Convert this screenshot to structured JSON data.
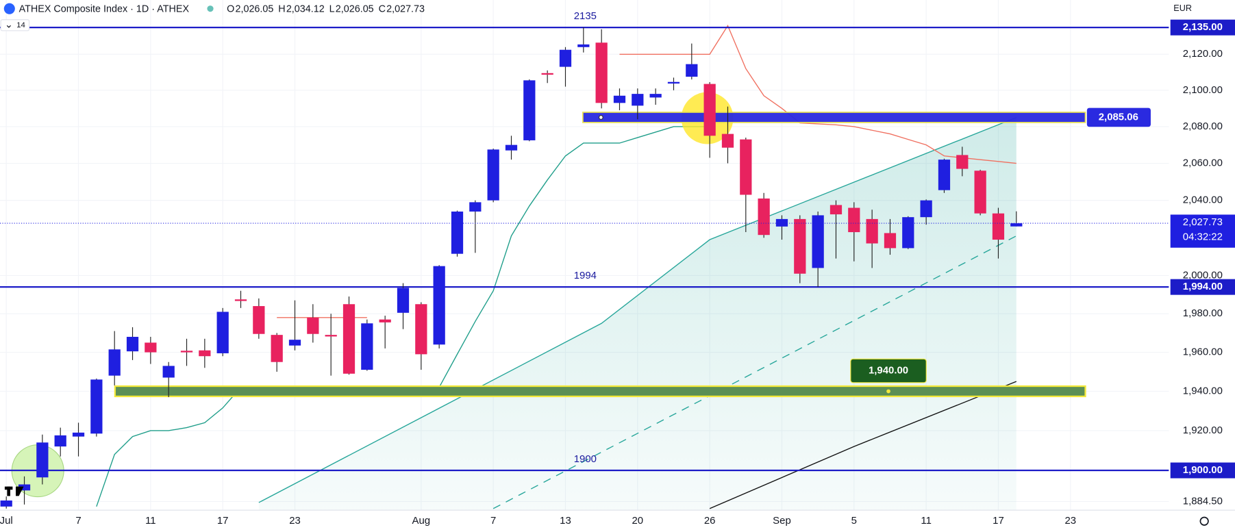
{
  "header": {
    "symbol": "ATHEX Composite Index · 1D · ATHEX",
    "ohlc": [
      {
        "key": "O",
        "value": "2,026.05"
      },
      {
        "key": "H",
        "value": "2,034.12"
      },
      {
        "key": "L",
        "value": "2,026.05"
      },
      {
        "key": "C",
        "value": "2,027.73"
      }
    ],
    "indicator": "14",
    "currency": "EUR",
    "countdown": "04:32:22"
  },
  "chart_data": {
    "type": "candlestick",
    "categories": [
      "Jul",
      null,
      null,
      null,
      "7",
      null,
      null,
      null,
      "11",
      null,
      null,
      null,
      "17",
      null,
      null,
      null,
      "23",
      null,
      null,
      null,
      null,
      null,
      null,
      "Aug",
      null,
      null,
      null,
      "7",
      null,
      null,
      null,
      "13",
      null,
      null,
      null,
      "20",
      null,
      null,
      null,
      "26",
      null,
      null,
      null,
      "Sep",
      null,
      null,
      null,
      "5",
      null,
      null,
      null,
      "11",
      null,
      null,
      null,
      "17",
      null,
      null,
      null,
      "23"
    ],
    "open": [
      1882,
      1890,
      1896.5,
      1912,
      1917,
      1918.5,
      1948,
      1960.5,
      1965,
      1947,
      1960.8,
      1961,
      1959.5,
      1987.5,
      1984,
      1969,
      1963.5,
      1978,
      1969,
      1985,
      1951,
      1977,
      1980.5,
      1985,
      1964,
      2011.5,
      2034,
      2040,
      2067,
      2072.5,
      2109.5,
      2113,
      2124,
      2126.5,
      2093,
      2091.5,
      2096,
      2104.5,
      2107.5,
      2103.5,
      2076,
      2073,
      2041,
      2026,
      2030,
      2004,
      2037.5,
      2036,
      2030,
      2022.5,
      2014.5,
      2031,
      2045.5,
      2064.5,
      2056,
      2033,
      2026.05,
      null,
      null,
      null
    ],
    "high": [
      1887,
      1897,
      1918,
      1921.5,
      1924,
      1946.5,
      1971,
      1973,
      1968,
      1955,
      1967,
      1967,
      1983,
      1992,
      1988,
      1970,
      1987,
      1985,
      1980,
      1989,
      1977,
      1979,
      1996,
      1986,
      2005.5,
      2034.5,
      2040,
      2068,
      2075,
      2106,
      2111,
      2124,
      2135,
      2134,
      2101,
      2101,
      2101,
      2107,
      2126,
      2104.5,
      2091,
      2074,
      2044,
      2032,
      2032,
      2034,
      2040,
      2039,
      2035,
      2030,
      2031.5,
      2040.5,
      2062.5,
      2069,
      2056.5,
      2036,
      2034.12,
      null,
      null,
      null
    ],
    "low": [
      1881,
      1883,
      1893,
      1907,
      1907,
      1917,
      1943,
      1956,
      1954,
      1937,
      1953,
      1952,
      1958,
      1983,
      1967,
      1950,
      1961,
      1965,
      1948,
      1948.5,
      1950.5,
      1962,
      1972,
      1951,
      1962,
      2010,
      2012,
      2039,
      2062,
      2072,
      2104,
      2102,
      2121,
      2090,
      2089,
      2084,
      2092,
      2100,
      2106,
      2063,
      2060,
      2023,
      2020,
      2019,
      1996,
      1994,
      2009,
      2007.5,
      2004,
      2011,
      2014,
      2027,
      2044,
      2053,
      2032,
      2009,
      2026.05,
      null,
      null,
      null
    ],
    "close": [
      1885,
      1893,
      1914,
      1917.6,
      1919,
      1946,
      1961.5,
      1968,
      1960,
      1953,
      1960.2,
      1958,
      1981,
      1987,
      1969.5,
      1955,
      1966.5,
      1969.5,
      1968.5,
      1949,
      1975,
      1975.5,
      1993.5,
      1959,
      2005,
      2034,
      2039,
      2067.5,
      2070,
      2105.5,
      2109,
      2122.5,
      2125.5,
      2093,
      2097,
      2098,
      2098,
      2104.6,
      2114.5,
      2075,
      2068.5,
      2043,
      2021.5,
      2030,
      2001,
      2032,
      2032.5,
      2023,
      2017,
      2014.5,
      2031,
      2040,
      2062,
      2057,
      2033,
      2019,
      2027.73,
      null,
      null,
      null
    ],
    "up_color": "#1f1fe0",
    "down_color": "#e8225f",
    "log_scale": true,
    "grid": true,
    "ylim": [
      1880.2,
      2150.5
    ],
    "yticks": [
      {
        "value": 2120,
        "label": "2,120.00"
      },
      {
        "value": 2100,
        "label": "2,100.00"
      },
      {
        "value": 2080,
        "label": "2,080.00"
      },
      {
        "value": 2060,
        "label": "2,060.00"
      },
      {
        "value": 2040,
        "label": "2,040.00"
      },
      {
        "value": 2000,
        "label": "2,000.00"
      },
      {
        "value": 1980,
        "label": "1,980.00"
      },
      {
        "value": 1960,
        "label": "1,960.00"
      },
      {
        "value": 1940,
        "label": "1,940.00"
      },
      {
        "value": 1920,
        "label": "1,920.00"
      },
      {
        "value": 1884.5,
        "label": "1,884.50"
      }
    ],
    "series": [
      {
        "color": "#1f9e8a",
        "values": [
          null,
          null,
          null,
          null,
          null,
          1882,
          1908,
          1917,
          1920,
          1920,
          1921.5,
          1924,
          1931.5,
          1942,
          1942,
          1942,
          1942,
          1942,
          1942,
          1942,
          1942,
          1942,
          1942,
          1942,
          1942,
          1959,
          1976,
          1992,
          2021,
          2037,
          2051,
          2064,
          2071,
          2071,
          2071,
          2074,
          2077,
          2080,
          2080,
          2080,
          null,
          null,
          null,
          null,
          null,
          null,
          null,
          null,
          null,
          null,
          null,
          null,
          null,
          null,
          null,
          null,
          null,
          null,
          null,
          null
        ]
      },
      {
        "color": "#f07060",
        "values": [
          null,
          null,
          null,
          null,
          null,
          null,
          null,
          null,
          null,
          null,
          null,
          null,
          null,
          null,
          null,
          1978,
          1978,
          1978,
          1978,
          1978,
          1978,
          null,
          null,
          null,
          null,
          null,
          null,
          null,
          null,
          null,
          null,
          null,
          null,
          null,
          2120,
          2120,
          2120,
          2120,
          2120,
          2120,
          2136,
          2112,
          2097,
          2090,
          2082,
          2081.5,
          2081,
          2080,
          2078,
          2076,
          2073,
          2070,
          2064,
          2063,
          2062,
          2061,
          2060,
          null,
          null,
          null
        ]
      }
    ],
    "trend_lines": [
      {
        "color": "#26a69a",
        "fill": true,
        "points": [
          [
            14,
            1884
          ],
          [
            33,
            1975
          ],
          [
            39,
            2019
          ],
          [
            56,
            2085
          ]
        ]
      },
      {
        "color": "#26a69a",
        "dashed": true,
        "points": [
          [
            27,
            1881
          ],
          [
            56,
            2021
          ]
        ]
      },
      {
        "color": "#111111",
        "points": [
          [
            39,
            1881
          ],
          [
            47,
            1912
          ],
          [
            56,
            1945
          ]
        ]
      }
    ],
    "levels": [
      {
        "value": 2135,
        "label": "2135",
        "axis_label": "2,135.00",
        "color": "#1c1cc8"
      },
      {
        "value": 1994,
        "label": "1994",
        "axis_label": "1,994.00",
        "color": "#1c1cc8"
      },
      {
        "value": 1900,
        "label": "1900",
        "axis_label": "1,900.00",
        "color": "#1c1cc8"
      }
    ],
    "zones": [
      {
        "value": 2085.06,
        "label": "2,085.06",
        "color": "#2a2ae0"
      },
      {
        "value": 1940,
        "label": "1,940.00",
        "color": "#5b8f55"
      }
    ],
    "last": {
      "value": 2027.73,
      "label": "2,027.73",
      "color": "#1f1fe0"
    }
  }
}
